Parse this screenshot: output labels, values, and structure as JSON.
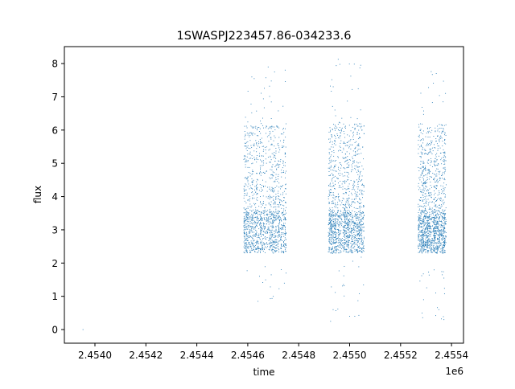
{
  "chart_data": {
    "type": "scatter",
    "title": "1SWASPJ223457.86-034233.6",
    "xlabel": "time",
    "ylabel": "flux",
    "x_offset_text": "1e6",
    "xlim": [
      2453880,
      2455447
    ],
    "ylim": [
      -0.41,
      8.51
    ],
    "xticks": [
      2454000,
      2454200,
      2454400,
      2454600,
      2454800,
      2455000,
      2455200,
      2455400
    ],
    "xtick_labels": [
      "2.4540",
      "2.4542",
      "2.4544",
      "2.4546",
      "2.4548",
      "2.4550",
      "2.4552",
      "2.4554"
    ],
    "yticks": [
      0,
      1,
      2,
      3,
      4,
      5,
      6,
      7,
      8
    ],
    "ytick_labels": [
      "0",
      "1",
      "2",
      "3",
      "4",
      "5",
      "6",
      "7",
      "8"
    ],
    "grid": false,
    "legend": "none",
    "color": "#1f77b4",
    "observing_seasons": [
      {
        "x_range": [
          2454585,
          2454750
        ],
        "flux_core": [
          2.3,
          3.5
        ],
        "flux_range": [
          0.9,
          7.9
        ]
      },
      {
        "x_range": [
          2454917,
          2455056
        ],
        "flux_core": [
          2.3,
          3.5
        ],
        "flux_range": [
          0.2,
          8.1
        ]
      },
      {
        "x_range": [
          2455270,
          2455378
        ],
        "flux_core": [
          2.3,
          3.4
        ],
        "flux_range": [
          0.25,
          7.75
        ]
      }
    ],
    "points": [
      {
        "x": 2453953,
        "y": 0.0
      },
      {
        "x": 2454680,
        "y": 7.9
      },
      {
        "x": 2454705,
        "y": 7.75
      },
      {
        "x": 2454955,
        "y": 8.13
      },
      {
        "x": 2455040,
        "y": 7.87
      },
      {
        "x": 2455320,
        "y": 7.76
      },
      {
        "x": 2455340,
        "y": 7.7
      },
      {
        "x": 2454640,
        "y": 0.85
      },
      {
        "x": 2454700,
        "y": 1.0
      },
      {
        "x": 2454750,
        "y": 1.7
      },
      {
        "x": 2454925,
        "y": 0.25
      },
      {
        "x": 2454935,
        "y": 0.6
      },
      {
        "x": 2455000,
        "y": 0.4
      },
      {
        "x": 2455020,
        "y": 0.4
      },
      {
        "x": 2455290,
        "y": 0.9
      },
      {
        "x": 2455350,
        "y": 0.6
      },
      {
        "x": 2455370,
        "y": 0.3
      }
    ]
  }
}
